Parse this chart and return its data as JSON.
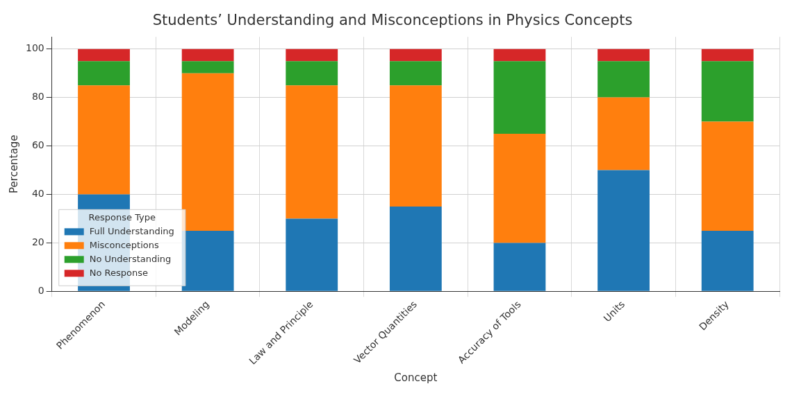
{
  "chart_data": {
    "type": "bar",
    "title": "Students’ Understanding and Misconceptions in Physics Concepts",
    "xlabel": "Concept",
    "ylabel": "Percentage",
    "legend_title": "Response Type",
    "categories": [
      "Phenomenon",
      "Modeling",
      "Law and Principle",
      "Vector Quantities",
      "Accuracy of Tools",
      "Units",
      "Density"
    ],
    "stacked": true,
    "ylim": [
      0,
      105
    ],
    "yticks": [
      0,
      20,
      40,
      60,
      80,
      100
    ],
    "grid": true,
    "legend": "bottom left",
    "series": [
      {
        "name": "Full Understanding",
        "color": "#1f77b4",
        "values": [
          40,
          25,
          30,
          35,
          20,
          50,
          25
        ]
      },
      {
        "name": "Misconceptions",
        "color": "#ff7f0e",
        "values": [
          45,
          65,
          55,
          50,
          45,
          30,
          45
        ]
      },
      {
        "name": "No Understanding",
        "color": "#2ca02c",
        "values": [
          10,
          5,
          10,
          10,
          30,
          15,
          25
        ]
      },
      {
        "name": "No Response",
        "color": "#d62728",
        "values": [
          5,
          5,
          5,
          5,
          5,
          5,
          5
        ]
      }
    ]
  }
}
